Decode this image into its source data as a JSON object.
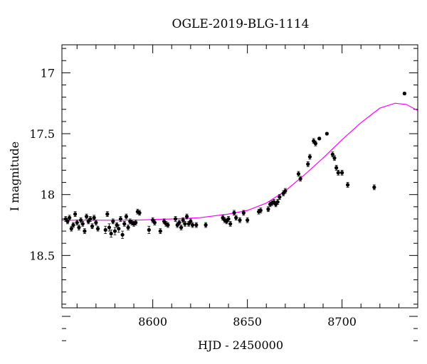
{
  "chart_data": {
    "type": "scatter",
    "title": "OGLE-2019-BLG-1114",
    "xlabel": "HJD - 2450000",
    "ylabel": "I magnitude",
    "xlim": [
      8552,
      8740
    ],
    "ylim": [
      18.93,
      16.77
    ],
    "y_inverted": true,
    "x_ticks": [
      8600,
      8650,
      8700
    ],
    "y_ticks": [
      17,
      17.5,
      18,
      18.5
    ],
    "grid": false,
    "colors": {
      "points": "#000000",
      "model": "#ff00ff"
    },
    "series": [
      {
        "kind": "points",
        "points": [
          [
            8554,
            18.2,
            0.02
          ],
          [
            8555,
            18.22,
            0.02
          ],
          [
            8556,
            18.19,
            0.02
          ],
          [
            8557,
            18.28,
            0.02
          ],
          [
            8558,
            18.25,
            0.02
          ],
          [
            8559,
            18.16,
            0.02
          ],
          [
            8560,
            18.23,
            0.02
          ],
          [
            8561,
            18.27,
            0.02
          ],
          [
            8562,
            18.21,
            0.02
          ],
          [
            8563,
            18.24,
            0.02
          ],
          [
            8564,
            18.3,
            0.02
          ],
          [
            8565,
            18.18,
            0.02
          ],
          [
            8566,
            18.22,
            0.02
          ],
          [
            8567,
            18.2,
            0.02
          ],
          [
            8568,
            18.26,
            0.02
          ],
          [
            8569,
            18.19,
            0.02
          ],
          [
            8570,
            18.23,
            0.02
          ],
          [
            8571,
            18.28,
            0.02
          ],
          [
            8575,
            18.29,
            0.03
          ],
          [
            8576,
            18.16,
            0.02
          ],
          [
            8577,
            18.27,
            0.03
          ],
          [
            8578,
            18.32,
            0.03
          ],
          [
            8579,
            18.22,
            0.02
          ],
          [
            8580,
            18.3,
            0.03
          ],
          [
            8581,
            18.25,
            0.02
          ],
          [
            8582,
            18.28,
            0.03
          ],
          [
            8583,
            18.2,
            0.02
          ],
          [
            8584,
            18.33,
            0.03
          ],
          [
            8585,
            18.24,
            0.02
          ],
          [
            8586,
            18.18,
            0.02
          ],
          [
            8587,
            18.27,
            0.02
          ],
          [
            8588,
            18.22,
            0.02
          ],
          [
            8589,
            18.23,
            0.02
          ],
          [
            8590,
            18.24,
            0.02
          ],
          [
            8591,
            18.23,
            0.02
          ],
          [
            8592,
            18.14,
            0.02
          ],
          [
            8593,
            18.15,
            0.02
          ],
          [
            8598,
            18.29,
            0.03
          ],
          [
            8600,
            18.21,
            0.02
          ],
          [
            8601,
            18.23,
            0.02
          ],
          [
            8604,
            18.3,
            0.02
          ],
          [
            8606,
            18.22,
            0.02
          ],
          [
            8607,
            18.24,
            0.02
          ],
          [
            8608,
            18.25,
            0.02
          ],
          [
            8612,
            18.2,
            0.02
          ],
          [
            8613,
            18.25,
            0.02
          ],
          [
            8614,
            18.23,
            0.02
          ],
          [
            8615,
            18.27,
            0.02
          ],
          [
            8616,
            18.21,
            0.02
          ],
          [
            8617,
            18.24,
            0.02
          ],
          [
            8618,
            18.18,
            0.02
          ],
          [
            8619,
            18.24,
            0.02
          ],
          [
            8620,
            18.22,
            0.02
          ],
          [
            8621,
            18.25,
            0.02
          ],
          [
            8623,
            18.25,
            0.02
          ],
          [
            8628,
            18.25,
            0.02
          ],
          [
            8637,
            18.19,
            0.02
          ],
          [
            8638,
            18.21,
            0.02
          ],
          [
            8639,
            18.22,
            0.02
          ],
          [
            8640,
            18.2,
            0.02
          ],
          [
            8641,
            18.24,
            0.02
          ],
          [
            8643,
            18.15,
            0.02
          ],
          [
            8644,
            18.19,
            0.02
          ],
          [
            8646,
            18.21,
            0.02
          ],
          [
            8648,
            18.15,
            0.02
          ],
          [
            8650,
            18.21,
            0.02
          ],
          [
            8656,
            18.14,
            0.02
          ],
          [
            8657,
            18.13,
            0.02
          ],
          [
            8661,
            18.12,
            0.02
          ],
          [
            8662,
            18.08,
            0.02
          ],
          [
            8663,
            18.07,
            0.02
          ],
          [
            8664,
            18.06,
            0.02
          ],
          [
            8665,
            18.08,
            0.02
          ],
          [
            8666,
            18.06,
            0.02
          ],
          [
            8667,
            18.02,
            0.02
          ],
          [
            8669,
            17.99,
            0.02
          ],
          [
            8670,
            17.97,
            0.02
          ],
          [
            8677,
            17.83,
            0.02
          ],
          [
            8678,
            17.87,
            0.02
          ],
          [
            8682,
            17.75,
            0.02
          ],
          [
            8683,
            17.69,
            0.02
          ],
          [
            8685,
            17.56,
            0.02
          ],
          [
            8686,
            17.58,
            0.02
          ],
          [
            8688,
            17.54,
            0.01
          ],
          [
            8692,
            17.5,
            0.01
          ],
          [
            8695,
            17.67,
            0.02
          ],
          [
            8696,
            17.7,
            0.02
          ],
          [
            8697,
            17.78,
            0.02
          ],
          [
            8698,
            17.82,
            0.02
          ],
          [
            8700,
            17.82,
            0.02
          ],
          [
            8703,
            17.92,
            0.02
          ],
          [
            8717,
            17.94,
            0.02
          ],
          [
            8733,
            17.17,
            0.01
          ]
        ]
      },
      {
        "kind": "model",
        "points": [
          [
            8552,
            18.21
          ],
          [
            8570,
            18.21
          ],
          [
            8590,
            18.21
          ],
          [
            8610,
            18.2
          ],
          [
            8625,
            18.19
          ],
          [
            8640,
            18.16
          ],
          [
            8650,
            18.13
          ],
          [
            8660,
            18.07
          ],
          [
            8670,
            17.97
          ],
          [
            8680,
            17.84
          ],
          [
            8690,
            17.7
          ],
          [
            8700,
            17.55
          ],
          [
            8710,
            17.41
          ],
          [
            8720,
            17.29
          ],
          [
            8728,
            17.25
          ],
          [
            8734,
            17.26
          ],
          [
            8740,
            17.31
          ]
        ]
      }
    ]
  }
}
